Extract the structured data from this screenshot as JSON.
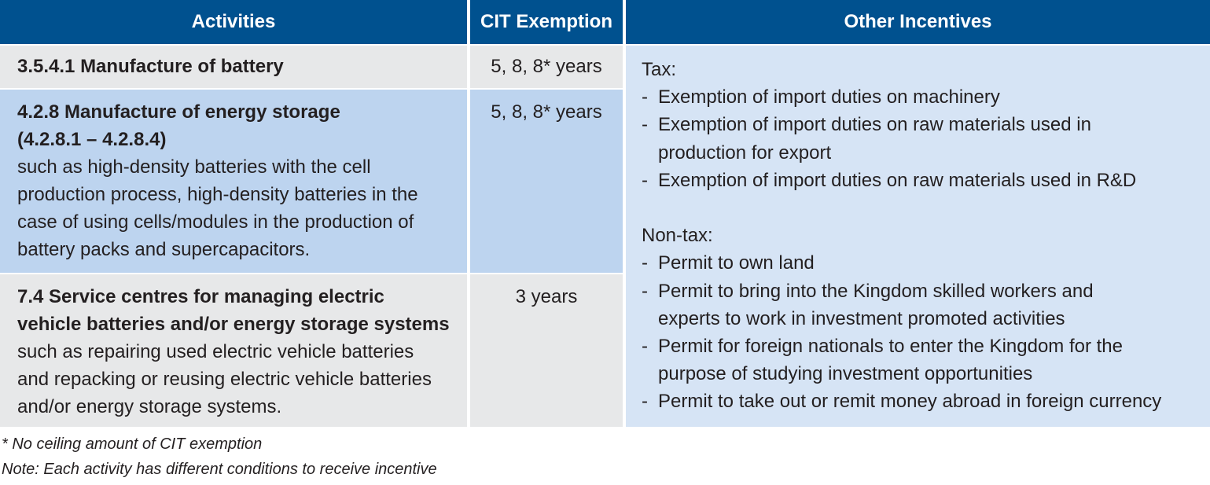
{
  "header": {
    "activities": "Activities",
    "cit": "CIT Exemption",
    "other": "Other Incentives"
  },
  "rows": [
    {
      "title": "3.5.4.1 Manufacture of battery",
      "description": "",
      "cit": "5, 8, 8* years"
    },
    {
      "title": "4.2.8 Manufacture of energy storage (4.2.8.1 – 4.2.8.4)",
      "description": "such as high-density batteries with the cell production process, high-density batteries in the case of using cells/modules in the production of battery packs and supercapacitors.",
      "cit": "5, 8, 8* years"
    },
    {
      "title": "7.4 Service centres for managing electric vehicle batteries and/or energy storage systems",
      "description": "such as repairing used electric vehicle batteries and repacking or reusing electric vehicle batteries and/or energy storage systems.",
      "cit": "3 years"
    }
  ],
  "other_incentives": {
    "tax_label": "Tax:",
    "tax_items": [
      "Exemption of import duties on machinery",
      "Exemption of import duties on raw materials used in production for export",
      "Exemption of import duties on raw materials used in R&D"
    ],
    "nontax_label": "Non-tax:",
    "nontax_items": [
      "Permit to own land",
      "Permit to bring into the Kingdom skilled workers and experts to work in investment promoted activities",
      "Permit for foreign nationals to enter the Kingdom for the purpose of studying investment opportunities",
      "Permit to take out or remit money abroad in foreign currency"
    ]
  },
  "footnotes": {
    "ceiling": "* No ceiling amount of CIT exemption",
    "note": "Note: Each activity has different conditions to receive incentive"
  },
  "colors": {
    "header": "#00518f",
    "row_grey": "#e7e8e9",
    "row_blue": "#bdd4ef",
    "other_bg": "#d6e4f5"
  }
}
